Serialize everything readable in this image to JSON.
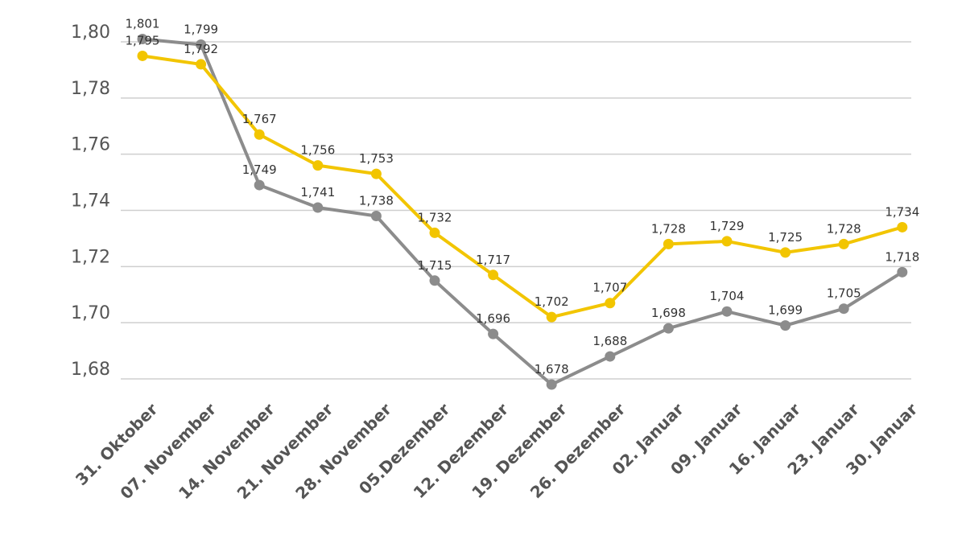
{
  "chart_data": {
    "type": "line",
    "title": "",
    "xlabel": "",
    "ylabel": "",
    "ylim": [
      1.68,
      1.8
    ],
    "yticks": [
      "1,68",
      "1,70",
      "1,72",
      "1,74",
      "1,76",
      "1,78",
      "1,80"
    ],
    "ytick_values": [
      1.68,
      1.7,
      1.72,
      1.74,
      1.76,
      1.78,
      1.8
    ],
    "categories": [
      "31. Oktober",
      "07. November",
      "14. November",
      "21. November",
      "28. November",
      "05.Dezember",
      "12. Dezember",
      "19. Dezember",
      "26. Dezember",
      "02. Januar",
      "09. Januar",
      "16. Januar",
      "23. Januar",
      "30. Januar"
    ],
    "grid": true,
    "series": [
      {
        "name": "yellow-series",
        "color": "#f2c500",
        "values": [
          1.795,
          1.792,
          1.767,
          1.756,
          1.753,
          1.732,
          1.717,
          1.702,
          1.707,
          1.728,
          1.729,
          1.725,
          1.728,
          1.734
        ],
        "labels": [
          "1,795",
          "1,792",
          "1,767",
          "1,756",
          "1,753",
          "1,732",
          "1,717",
          "1,702",
          "1,707",
          "1,728",
          "1,729",
          "1,725",
          "1,728",
          "1,734"
        ]
      },
      {
        "name": "gray-series",
        "color": "#8c8c8c",
        "values": [
          1.801,
          1.799,
          1.749,
          1.741,
          1.738,
          1.715,
          1.696,
          1.678,
          1.688,
          1.698,
          1.704,
          1.699,
          1.705,
          1.718
        ],
        "labels": [
          "1,801",
          "1,799",
          "1,749",
          "1,741",
          "1,738",
          "1,715",
          "1,696",
          "1,678",
          "1,688",
          "1,698",
          "1,704",
          "1,699",
          "1,705",
          "1,718"
        ]
      }
    ]
  }
}
